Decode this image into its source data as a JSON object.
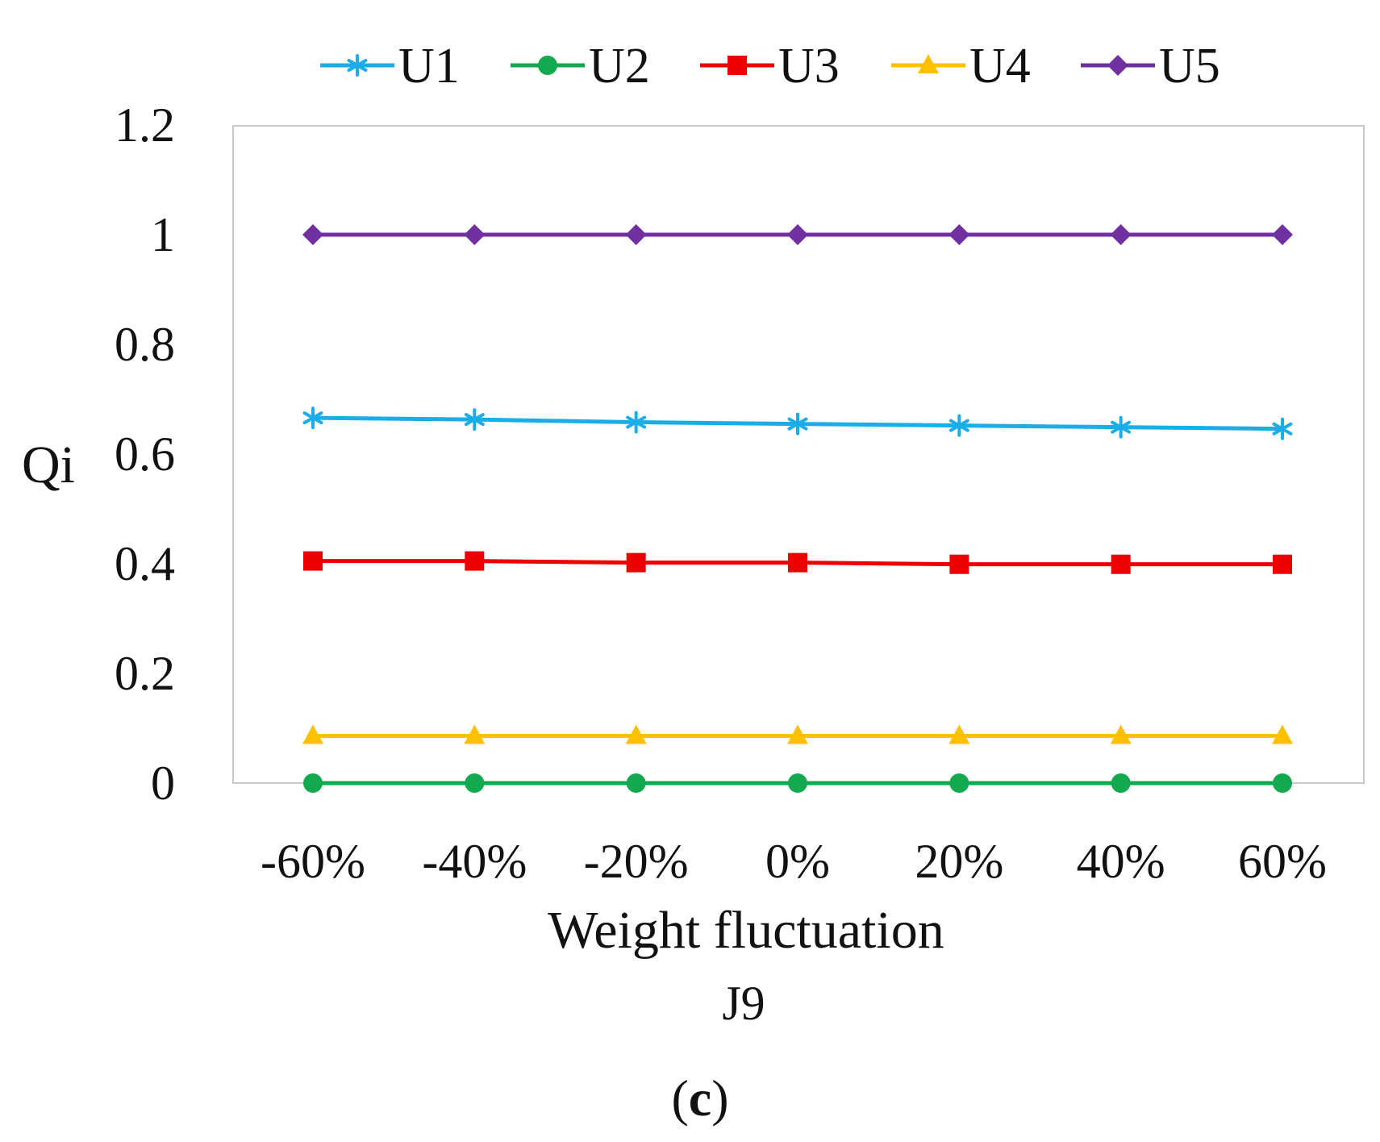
{
  "chart_data": {
    "type": "line",
    "title": "",
    "categories": [
      "-60%",
      "-40%",
      "-20%",
      "0%",
      "20%",
      "40%",
      "60%"
    ],
    "xlabel": "Weight fluctuation",
    "xsublabel": "J9",
    "ylabel": "Qi",
    "panel_label_open": "(",
    "panel_label_letter": "c",
    "panel_label_close": ")",
    "ylim": [
      0,
      1.2
    ],
    "yticks": [
      0,
      0.2,
      0.4,
      0.6,
      0.8,
      1,
      1.2
    ],
    "ytick_labels": [
      "0",
      "0.2",
      "0.4",
      "0.6",
      "0.8",
      "1",
      "1.2"
    ],
    "grid": false,
    "legend_position": "top",
    "series": [
      {
        "name": "U1",
        "color": "#1AADE8",
        "marker": "asterisk",
        "values": [
          0.666,
          0.663,
          0.658,
          0.655,
          0.652,
          0.649,
          0.646
        ]
      },
      {
        "name": "U2",
        "color": "#13A94E",
        "marker": "circle",
        "values": [
          0,
          0,
          0,
          0,
          0,
          0,
          0
        ]
      },
      {
        "name": "U3",
        "color": "#EE0000",
        "marker": "square",
        "values": [
          0.405,
          0.405,
          0.402,
          0.402,
          0.399,
          0.399,
          0.399
        ]
      },
      {
        "name": "U4",
        "color": "#FFC000",
        "marker": "triangle",
        "values": [
          0.086,
          0.086,
          0.086,
          0.086,
          0.086,
          0.086,
          0.086
        ]
      },
      {
        "name": "U5",
        "color": "#7030A0",
        "marker": "diamond",
        "values": [
          1,
          1,
          1,
          1,
          1,
          1,
          1
        ]
      }
    ]
  }
}
